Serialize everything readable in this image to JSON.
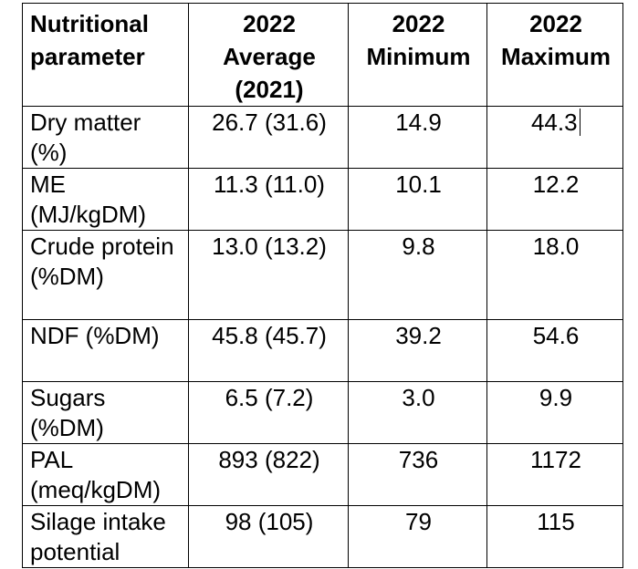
{
  "table": {
    "headers": [
      "Nutritional parameter",
      "2022 Average (2021)",
      "2022 Minimum",
      "2022 Maximum"
    ],
    "rows": [
      {
        "parameter": "Dry matter (%)",
        "average": "26.7 (31.6)",
        "minimum": "14.9",
        "maximum": "44.3"
      },
      {
        "parameter": "ME (MJ/kgDM)",
        "average": "11.3 (11.0)",
        "minimum": "10.1",
        "maximum": "12.2"
      },
      {
        "parameter": "Crude protein (%DM)",
        "average": "13.0 (13.2)",
        "minimum": "9.8",
        "maximum": "18.0"
      },
      {
        "parameter": "NDF (%DM)",
        "average": "45.8 (45.7)",
        "minimum": "39.2",
        "maximum": "54.6"
      },
      {
        "parameter": "Sugars (%DM)",
        "average": "6.5 (7.2)",
        "minimum": "3.0",
        "maximum": "9.9"
      },
      {
        "parameter": "PAL (meq/kgDM)",
        "average": "893 (822)",
        "minimum": "736",
        "maximum": "1172"
      },
      {
        "parameter": "Silage intake potential",
        "average": "98 (105)",
        "minimum": "79",
        "maximum": "115"
      }
    ]
  }
}
